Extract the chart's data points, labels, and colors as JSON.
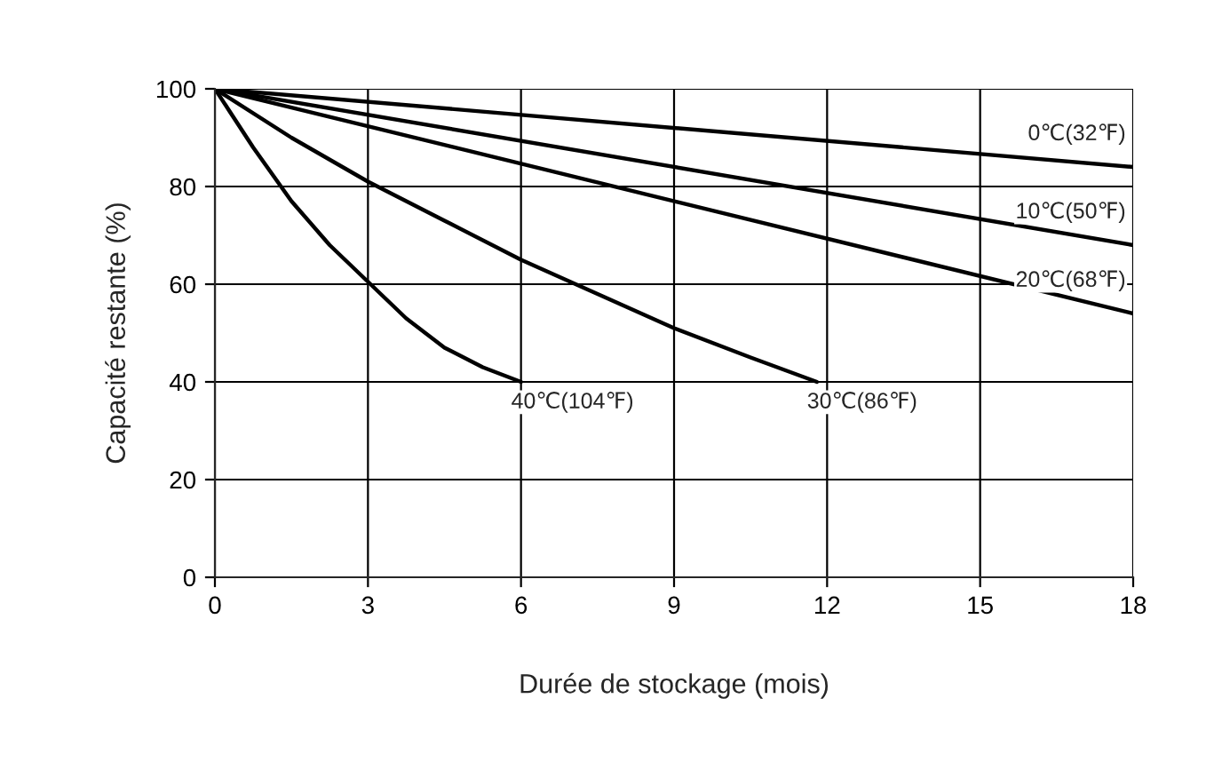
{
  "chart_data": {
    "type": "line",
    "xlabel": "Durée de stockage (mois)",
    "ylabel": "Capacité restante (%)",
    "xlim": [
      0,
      18
    ],
    "ylim": [
      0,
      100
    ],
    "xticks": [
      0,
      3,
      6,
      9,
      12,
      15,
      18
    ],
    "yticks": [
      0,
      20,
      40,
      60,
      80,
      100
    ],
    "grid": true,
    "legend": false,
    "marker": "none",
    "line_style": "solid",
    "series": [
      {
        "name": "0℃(32℉)",
        "color": "#000000",
        "x": [
          0,
          18
        ],
        "values": [
          100,
          84
        ]
      },
      {
        "name": "10℃(50℉)",
        "color": "#000000",
        "x": [
          0,
          18
        ],
        "values": [
          100,
          68
        ]
      },
      {
        "name": "20℃(68℉)",
        "color": "#000000",
        "x": [
          0,
          18
        ],
        "values": [
          100,
          54
        ]
      },
      {
        "name": "30℃(86℉)",
        "color": "#000000",
        "x": [
          0,
          1.5,
          3,
          4.5,
          6,
          7.5,
          9,
          10.5,
          11.8
        ],
        "values": [
          100,
          90,
          81,
          73,
          65,
          58,
          51,
          45,
          40
        ]
      },
      {
        "name": "40℃(104℉)",
        "color": "#000000",
        "x": [
          0,
          0.75,
          1.5,
          2.25,
          3,
          3.75,
          4.5,
          5.25,
          6
        ],
        "values": [
          100,
          88,
          77,
          68,
          60.5,
          53,
          47,
          43,
          40
        ]
      }
    ]
  }
}
